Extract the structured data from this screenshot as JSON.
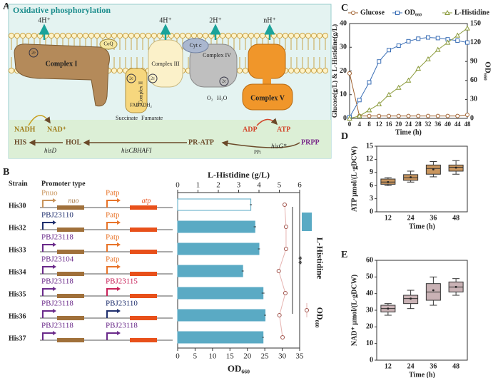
{
  "panels": [
    "A",
    "B",
    "C",
    "D",
    "E"
  ],
  "diagram": {
    "title": "Oxidative phosphorylation",
    "protons": [
      "4H⁺",
      "4H⁺",
      "2H⁺",
      "nH⁺"
    ],
    "complex1": "Complex I",
    "coq": "CoQ",
    "complex2": "Complex II",
    "complex3": "Complex III",
    "cytc": "Cyt c",
    "complex4": "Complex IV",
    "complex5": "Complex V",
    "electrons": [
      "2e",
      "2e",
      "2e",
      "2e"
    ],
    "fad": "FAD",
    "fadh2": "FADH₂",
    "succinate": "Succinate",
    "fumarate": "Fumarate",
    "o2": "O₂",
    "h2o": "H₂O",
    "nadh": "NADH",
    "nad": "NAD⁺",
    "his": "HIS",
    "hisd": "hisD",
    "hol": "HOL",
    "hiscbhafi": "hisCBHAFI",
    "prat": "PR-ATP",
    "adp": "ADP",
    "atp": "ATP",
    "prpp": "PRPP",
    "hisg": "hisG*",
    "ppi": "PPi"
  },
  "constructs": {
    "header_strain": "Strain",
    "header_promoter": "Promoter type",
    "genes": [
      "nuo",
      "atp"
    ],
    "rows": [
      [
        "Pnuo",
        "Patp"
      ],
      [
        "PBJ23110",
        "Patp"
      ],
      [
        "PBJ23118",
        "Patp"
      ],
      [
        "PBJ23104",
        "Patp"
      ],
      [
        "PBJ23118",
        "PBJ23115"
      ],
      [
        "PBJ23118",
        "PBJ23110"
      ],
      [
        "PBJ23118",
        "PBJ23118"
      ]
    ],
    "row_colors": [
      [
        "#c8935a",
        "#e8742a"
      ],
      [
        "#1f2f6e",
        "#e8742a"
      ],
      [
        "#6a2a8a",
        "#e8742a"
      ],
      [
        "#6a2a8a",
        "#e8742a"
      ],
      [
        "#6a2a8a",
        "#c8235a"
      ],
      [
        "#6a2a8a",
        "#1f2f6e"
      ],
      [
        "#6a2a8a",
        "#6a2a8a"
      ]
    ]
  },
  "chart_data": [
    {
      "type": "hbar",
      "categories": [
        "His30",
        "His32",
        "His33",
        "His34",
        "His35",
        "His36",
        "His37"
      ],
      "xlabel": "L-Histidine (g/L)",
      "x2label": "OD₆₆₀",
      "annotation": "**",
      "xlim": [
        0,
        6
      ],
      "xticks": [
        0,
        1,
        2,
        3,
        4,
        5,
        6
      ],
      "x2lim": [
        0,
        35
      ],
      "x2ticks": [
        0,
        5,
        10,
        15,
        20,
        25,
        30,
        35
      ],
      "series": [
        {
          "name": "L-Histidine",
          "color": "#5aaac4",
          "colors": [
            "#ffffff",
            "#5aaac4",
            "#5aaac4",
            "#5aaac4",
            "#5aaac4",
            "#5aaac4",
            "#5aaac4"
          ],
          "values": [
            3.6,
            3.8,
            4.0,
            3.2,
            4.2,
            4.3,
            4.2
          ],
          "errors": [
            0.05,
            0.06,
            0.05,
            0.05,
            0.07,
            0.05,
            0.04
          ]
        },
        {
          "name": "OD₆₆₀",
          "axis": "x2",
          "color": "#a0524a",
          "values": [
            30.7,
            31.1,
            31.1,
            29.0,
            30.9,
            29.2,
            30.1
          ],
          "errors": [
            0.5,
            0.4,
            0.4,
            0.5,
            0.6,
            0.5,
            0.4
          ]
        }
      ]
    },
    {
      "type": "line",
      "x": [
        0,
        4,
        8,
        12,
        16,
        20,
        24,
        28,
        32,
        36,
        40,
        44,
        48
      ],
      "xlabel": "Time (h)",
      "ylabel": "Glucose(g/L) & L-Histidine(g/L)",
      "y2label": "OD₆₆₀",
      "xlim": [
        0,
        48
      ],
      "xticks": [
        0,
        4,
        8,
        12,
        16,
        20,
        24,
        28,
        32,
        36,
        40,
        44,
        48
      ],
      "ylim": [
        0,
        40
      ],
      "yticks": [
        0,
        10,
        20,
        30,
        40
      ],
      "y2lim": [
        0,
        150
      ],
      "y2ticks": [
        0,
        30,
        60,
        90,
        120,
        150
      ],
      "series": [
        {
          "name": "Glucose",
          "color": "#a0602d",
          "marker": "circle",
          "values": [
            19,
            1,
            1,
            1,
            1,
            1,
            1,
            1,
            1,
            1,
            1,
            1,
            1.5
          ]
        },
        {
          "name": "OD₆₆₀",
          "color": "#3b6fb6",
          "marker": "square",
          "axis": "y2",
          "values": [
            2,
            29,
            57,
            90,
            108,
            115,
            122,
            126,
            128,
            127,
            125,
            123,
            120
          ]
        },
        {
          "name": "L-Histidine",
          "color": "#8a9a3a",
          "marker": "triangle",
          "values": [
            0,
            1,
            3.5,
            6,
            10,
            13,
            16,
            21,
            25,
            29,
            32,
            35,
            38
          ]
        }
      ]
    },
    {
      "type": "box",
      "categories": [
        "12",
        "24",
        "36",
        "48"
      ],
      "xlabel": "Time (h)",
      "ylabel": "ATP μmol/(L·gDCW)",
      "color": "#c8955e",
      "ylim": [
        0,
        15
      ],
      "yticks": [
        0,
        3,
        6,
        9,
        12,
        15
      ],
      "min": [
        6.0,
        6.8,
        8.0,
        8.6
      ],
      "q1": [
        6.3,
        7.2,
        8.6,
        9.3
      ],
      "median": [
        6.8,
        7.8,
        9.9,
        10.2
      ],
      "q3": [
        7.5,
        8.5,
        10.7,
        10.7
      ],
      "max": [
        7.8,
        9.3,
        11.5,
        11.7
      ],
      "mean": [
        6.8,
        7.9,
        9.7,
        10.1
      ]
    },
    {
      "type": "box",
      "categories": [
        "12",
        "24",
        "36",
        "48"
      ],
      "xlabel": "Time (h)",
      "ylabel": "NAD⁺ μmol/(L·gDCW)",
      "color": "#c9b2b5",
      "ylim": [
        0,
        60
      ],
      "yticks": [
        0,
        10,
        20,
        30,
        40,
        50,
        60
      ],
      "min": [
        27,
        31,
        33,
        39
      ],
      "q1": [
        29,
        34,
        36,
        41
      ],
      "median": [
        31,
        37,
        41,
        44
      ],
      "q3": [
        33,
        39,
        46,
        47
      ],
      "max": [
        34,
        42,
        50,
        49
      ],
      "mean": [
        31,
        37,
        42,
        44
      ]
    }
  ]
}
